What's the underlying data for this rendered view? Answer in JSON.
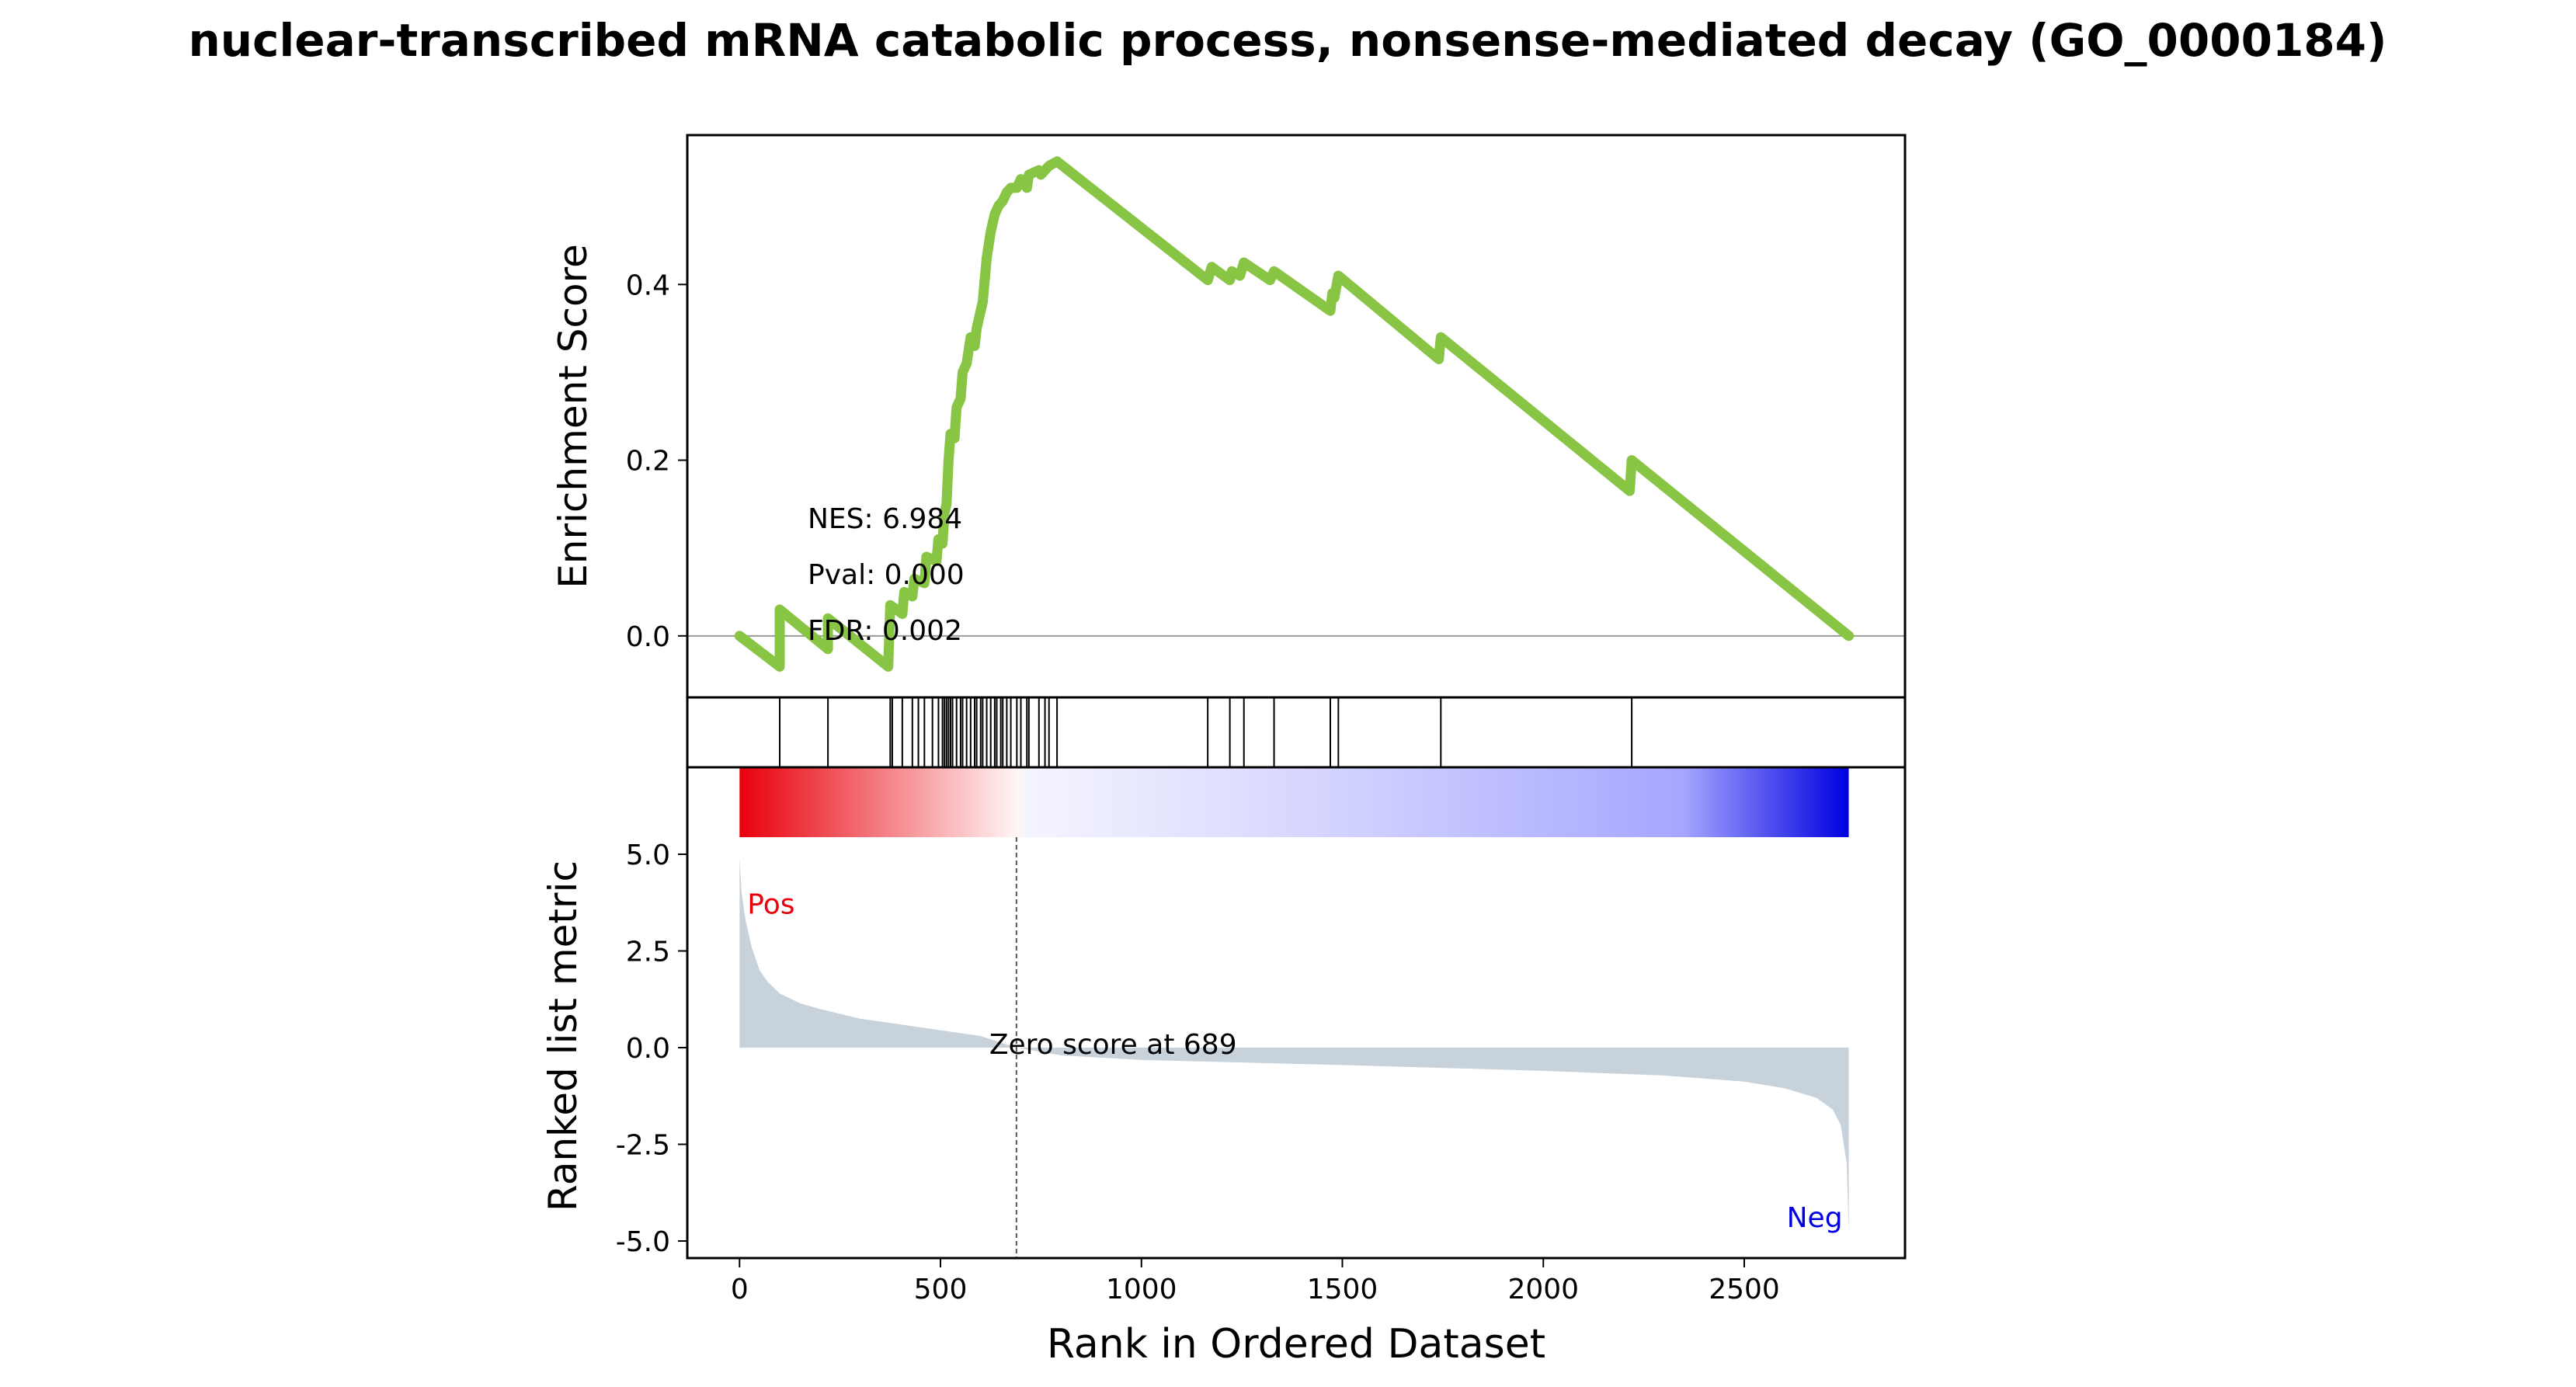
{
  "chart_data": {
    "type": "line",
    "title": "nuclear-transcribed mRNA catabolic process, nonsense-mediated decay (GO_0000184)",
    "es_panel": {
      "ylabel": "Enrichment Score",
      "ylim": [
        -0.07,
        0.57
      ],
      "yticks": [
        0.0,
        0.2,
        0.4
      ],
      "ytick_labels": [
        "0.0",
        "0.2",
        "0.4"
      ],
      "line_color": "#88c544",
      "zero_line_color": "#9a9a9a",
      "points": [
        [
          0,
          0.0
        ],
        [
          100,
          -0.035
        ],
        [
          100,
          0.03
        ],
        [
          220,
          -0.015
        ],
        [
          220,
          0.02
        ],
        [
          370,
          -0.035
        ],
        [
          375,
          0.035
        ],
        [
          405,
          0.025
        ],
        [
          410,
          0.05
        ],
        [
          430,
          0.045
        ],
        [
          435,
          0.065
        ],
        [
          460,
          0.06
        ],
        [
          465,
          0.09
        ],
        [
          490,
          0.085
        ],
        [
          495,
          0.11
        ],
        [
          505,
          0.105
        ],
        [
          510,
          0.14
        ],
        [
          515,
          0.15
        ],
        [
          520,
          0.2
        ],
        [
          525,
          0.23
        ],
        [
          535,
          0.225
        ],
        [
          540,
          0.26
        ],
        [
          550,
          0.27
        ],
        [
          555,
          0.3
        ],
        [
          565,
          0.31
        ],
        [
          575,
          0.34
        ],
        [
          585,
          0.33
        ],
        [
          590,
          0.35
        ],
        [
          600,
          0.37
        ],
        [
          605,
          0.38
        ],
        [
          615,
          0.43
        ],
        [
          625,
          0.46
        ],
        [
          635,
          0.48
        ],
        [
          645,
          0.49
        ],
        [
          655,
          0.495
        ],
        [
          665,
          0.505
        ],
        [
          675,
          0.51
        ],
        [
          690,
          0.51
        ],
        [
          700,
          0.52
        ],
        [
          715,
          0.51
        ],
        [
          720,
          0.525
        ],
        [
          745,
          0.53
        ],
        [
          750,
          0.525
        ],
        [
          770,
          0.535
        ],
        [
          790,
          0.54
        ],
        [
          1165,
          0.405
        ],
        [
          1175,
          0.42
        ],
        [
          1220,
          0.405
        ],
        [
          1225,
          0.415
        ],
        [
          1245,
          0.41
        ],
        [
          1255,
          0.425
        ],
        [
          1320,
          0.405
        ],
        [
          1330,
          0.415
        ],
        [
          1470,
          0.37
        ],
        [
          1475,
          0.39
        ],
        [
          1480,
          0.385
        ],
        [
          1490,
          0.41
        ],
        [
          1740,
          0.315
        ],
        [
          1745,
          0.34
        ],
        [
          2215,
          0.165
        ],
        [
          2220,
          0.2
        ],
        [
          2760,
          0.0
        ]
      ],
      "annotations": [
        "NES: 6.984",
        "Pval: 0.000",
        "FDR: 0.002"
      ]
    },
    "hits_panel": {
      "positions": [
        100,
        220,
        375,
        380,
        405,
        430,
        445,
        460,
        480,
        495,
        505,
        510,
        515,
        520,
        525,
        530,
        540,
        550,
        555,
        565,
        575,
        585,
        590,
        600,
        605,
        615,
        625,
        635,
        640,
        650,
        655,
        665,
        675,
        690,
        700,
        715,
        720,
        745,
        760,
        770,
        790,
        1165,
        1220,
        1255,
        1330,
        1470,
        1490,
        1745,
        2220
      ]
    },
    "rank_panel": {
      "ylabel": "Ranked list metric",
      "xlabel": "Rank in Ordered Dataset",
      "ylim": [
        -5.0,
        5.0
      ],
      "yticks": [
        5.0,
        2.5,
        0.0,
        -2.5,
        -5.0
      ],
      "ytick_labels": [
        "5.0",
        "2.5",
        "0.0",
        "-2.5",
        "-5.0"
      ],
      "xlim": [
        -130,
        2900
      ],
      "xticks": [
        0,
        500,
        1000,
        1500,
        2000,
        2500
      ],
      "xtick_labels": [
        "0",
        "500",
        "1000",
        "1500",
        "2000",
        "2500"
      ],
      "fill_color": "#c8d2da",
      "n_genes": 2760,
      "zero_cross": 689,
      "zero_label": "Zero score at 689",
      "pos_label": "Pos",
      "neg_label": "Neg",
      "pos_color": "#e8000b",
      "neg_color": "#0000e0",
      "metric_curve": [
        [
          0,
          4.9
        ],
        [
          5,
          4.0
        ],
        [
          15,
          3.3
        ],
        [
          30,
          2.6
        ],
        [
          50,
          2.0
        ],
        [
          70,
          1.7
        ],
        [
          100,
          1.4
        ],
        [
          150,
          1.15
        ],
        [
          200,
          1.0
        ],
        [
          300,
          0.75
        ],
        [
          400,
          0.6
        ],
        [
          500,
          0.45
        ],
        [
          600,
          0.3
        ],
        [
          689,
          0.0
        ],
        [
          800,
          -0.2
        ],
        [
          1000,
          -0.32
        ],
        [
          1500,
          -0.45
        ],
        [
          2000,
          -0.6
        ],
        [
          2300,
          -0.72
        ],
        [
          2500,
          -0.88
        ],
        [
          2600,
          -1.05
        ],
        [
          2680,
          -1.3
        ],
        [
          2720,
          -1.6
        ],
        [
          2740,
          -2.0
        ],
        [
          2755,
          -3.0
        ],
        [
          2760,
          -4.8
        ]
      ]
    }
  }
}
